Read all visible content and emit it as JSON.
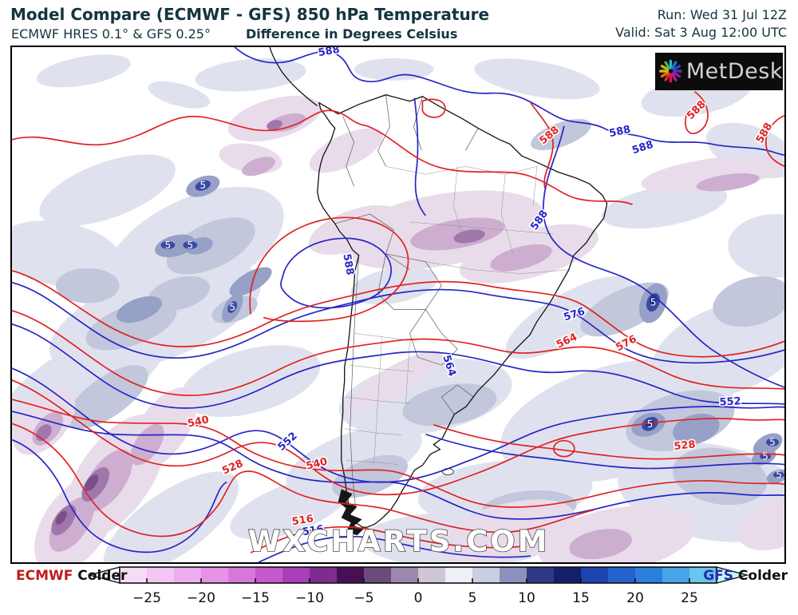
{
  "header": {
    "title": "Model Compare (ECMWF - GFS) 850 hPa Temperature",
    "subtitle_models": "ECMWF HRES 0.1° & GFS 0.25°",
    "subtitle_units": "Difference in Degrees Celsius",
    "run": "Run: Wed 31 Jul 12Z",
    "valid": "Valid: Sat 3 Aug 12:00 UTC",
    "text_color": "#15343f"
  },
  "logo": {
    "text": "MetDesk"
  },
  "watermark": {
    "text": "WXCHARTS.COM"
  },
  "map": {
    "ecmwf_contour_color": "#e02222",
    "gfs_contour_color": "#2525c8",
    "diff_label_color": "#ffffff",
    "height_contour_values": [
      "516",
      "528",
      "540",
      "552",
      "564",
      "576",
      "588"
    ],
    "contour_labels": [
      {
        "value": "588",
        "color": "#2525c8"
      },
      {
        "value": "588",
        "color": "#e02222"
      },
      {
        "value": "588",
        "color": "#e02222"
      },
      {
        "value": "588",
        "color": "#e02222"
      },
      {
        "value": "588",
        "color": "#2525c8"
      },
      {
        "value": "588",
        "color": "#2525c8"
      },
      {
        "value": "588",
        "color": "#2525c8"
      },
      {
        "value": "588",
        "color": "#2525c8"
      },
      {
        "value": "576",
        "color": "#2525c8"
      },
      {
        "value": "576",
        "color": "#e02222"
      },
      {
        "value": "564",
        "color": "#e02222"
      },
      {
        "value": "564",
        "color": "#2525c8"
      },
      {
        "value": "552",
        "color": "#2525c8"
      },
      {
        "value": "552",
        "color": "#2525c8"
      },
      {
        "value": "540",
        "color": "#e02222"
      },
      {
        "value": "540",
        "color": "#e02222"
      },
      {
        "value": "528",
        "color": "#e02222"
      },
      {
        "value": "528",
        "color": "#e02222"
      },
      {
        "value": "516",
        "color": "#e02222"
      },
      {
        "value": "516",
        "color": "#2525c8"
      }
    ],
    "diff_labels": [
      {
        "value": "5"
      },
      {
        "value": "5"
      },
      {
        "value": "5"
      },
      {
        "value": "5"
      },
      {
        "value": "5"
      },
      {
        "value": "5"
      },
      {
        "value": "5"
      },
      {
        "value": "5"
      },
      {
        "value": "5"
      },
      {
        "value": "-5"
      },
      {
        "value": "-5"
      }
    ]
  },
  "legend": {
    "left_model": "ECMWF",
    "left_label": "Colder",
    "right_model": "GFS",
    "right_label": "Colder",
    "left_model_color": "#c01c1c",
    "right_model_color": "#2a2aa8",
    "range": [
      -27.5,
      27.5
    ],
    "tip_left": "#fbeffb",
    "tip_right": "#c4f6fc",
    "colors": [
      "#f7dcf7",
      "#f3c6f3",
      "#eeadee",
      "#e692e7",
      "#d976dc",
      "#c659ce",
      "#a93eb8",
      "#7f2c90",
      "#471055",
      "#6d4a7c",
      "#9c88ab",
      "#cfc5d8",
      "#efeff6",
      "#c9cee0",
      "#8a92bd",
      "#2e3a88",
      "#131f6b",
      "#1c44b0",
      "#2563cc",
      "#2e7fdc",
      "#47a4e8",
      "#68c6ef"
    ],
    "ticks": [
      {
        "v": -25,
        "label": "−25"
      },
      {
        "v": -20,
        "label": "−20"
      },
      {
        "v": -15,
        "label": "−15"
      },
      {
        "v": -10,
        "label": "−10"
      },
      {
        "v": -5,
        "label": "−5"
      },
      {
        "v": 0,
        "label": "0"
      },
      {
        "v": 5,
        "label": "5"
      },
      {
        "v": 10,
        "label": "10"
      },
      {
        "v": 15,
        "label": "15"
      },
      {
        "v": 20,
        "label": "20"
      },
      {
        "v": 25,
        "label": "25"
      }
    ]
  }
}
